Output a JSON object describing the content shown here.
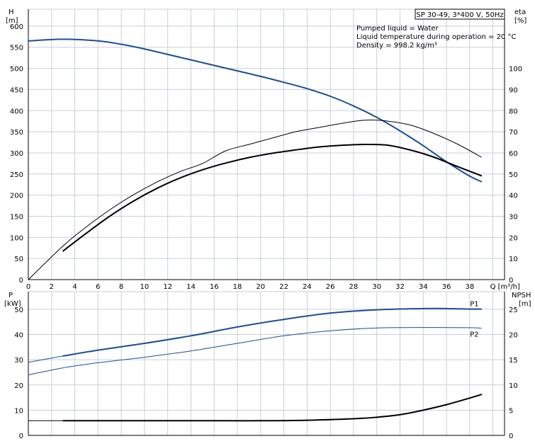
{
  "colors": {
    "head_curve": "#1f4e8c",
    "p1_curve": "#1f4e8c",
    "p2_curve": "#1f4e8c",
    "black": "#000000",
    "grid": "#c8cfdc"
  },
  "info": {
    "title_box": "SP 30-49, 3*400 V, 50Hz",
    "lines": [
      "Pumped liquid = Water",
      "Liquid temperature during operation = 20 °C",
      "Density = 998.2 kg/m³"
    ]
  },
  "chart_data": [
    {
      "type": "line",
      "name_key": "upper",
      "xlabel": "Q [m³/h]",
      "ylabel_left": [
        "H",
        "[m]"
      ],
      "ylabel_right": [
        "eta",
        "[%]"
      ],
      "xlim": [
        0,
        41
      ],
      "ylim_left": [
        0,
        640
      ],
      "ylim_right": [
        0,
        128
      ],
      "xticks": [
        0,
        2,
        4,
        6,
        8,
        10,
        12,
        14,
        16,
        18,
        20,
        22,
        24,
        26,
        28,
        30,
        32,
        34,
        36,
        38
      ],
      "yticks_left": [
        0,
        50,
        100,
        150,
        200,
        250,
        300,
        350,
        400,
        450,
        500,
        550,
        600
      ],
      "yticks_right": [
        0,
        10,
        20,
        30,
        40,
        50,
        60,
        70,
        80,
        90,
        100
      ],
      "grid": true,
      "series": [
        {
          "axis": "left",
          "color_key": "head_curve",
          "width": 2,
          "x": [
            0,
            3,
            6,
            8,
            10,
            12,
            14,
            16,
            18,
            20,
            22,
            24,
            26,
            28,
            30,
            32,
            34,
            36,
            38,
            39
          ],
          "y": [
            565,
            569,
            565,
            557,
            546,
            533,
            520,
            507,
            494,
            481,
            467,
            452,
            434,
            411,
            384,
            352,
            317,
            279,
            245,
            232
          ]
        },
        {
          "axis": "right",
          "color_key": "black",
          "width": 1,
          "x": [
            0,
            3,
            5,
            7,
            9,
            11,
            13,
            15,
            17,
            19,
            21,
            23,
            25,
            27,
            29,
            31,
            33,
            35,
            37,
            39
          ],
          "y": [
            0,
            16,
            25,
            33,
            40,
            46,
            51,
            55,
            61,
            64,
            67,
            70,
            72,
            74,
            75.5,
            75,
            73,
            69,
            64,
            58
          ]
        },
        {
          "axis": "left",
          "color_key": "black",
          "width": 2,
          "x": [
            3,
            5,
            7,
            9,
            11,
            13,
            15,
            17,
            19,
            21,
            23,
            25,
            27,
            29,
            31,
            33,
            35,
            37,
            39
          ],
          "y": [
            68,
            110,
            150,
            185,
            215,
            240,
            260,
            276,
            289,
            299,
            307,
            314,
            318,
            320,
            318,
            306,
            289,
            267,
            246
          ]
        }
      ]
    },
    {
      "type": "line",
      "name_key": "lower",
      "ylabel_left": [
        "P",
        "[kW]"
      ],
      "ylabel_right": [
        "NPSH",
        "[m]"
      ],
      "xlim": [
        0,
        41
      ],
      "ylim_left": [
        0,
        57
      ],
      "ylim_right": [
        0,
        28.5
      ],
      "yticks_left": [
        0,
        10,
        20,
        30,
        40,
        50
      ],
      "yticks_right": [
        0,
        5,
        10,
        15,
        20,
        25
      ],
      "grid": true,
      "series": [
        {
          "name": "P1",
          "axis": "left",
          "color_key": "p1_curve",
          "width": 2,
          "x": [
            3,
            6,
            10,
            14,
            18,
            22,
            26,
            30,
            34,
            36,
            38,
            39
          ],
          "y": [
            31.5,
            33.8,
            36.5,
            39.5,
            43,
            46,
            48.5,
            49.8,
            50.3,
            50.3,
            50.1,
            50.1
          ]
        },
        {
          "name": "P2",
          "axis": "left",
          "color_key": "p2_curve",
          "width": 1,
          "x": [
            0,
            3,
            6,
            10,
            14,
            18,
            22,
            26,
            30,
            34,
            38,
            39
          ],
          "y": [
            24,
            26.8,
            28.8,
            31,
            33.5,
            36.5,
            39.5,
            41.5,
            42.6,
            42.8,
            42.7,
            42.5
          ]
        },
        {
          "axis": "left",
          "color_key": "p1_curve",
          "width": 1,
          "x": [
            0,
            3
          ],
          "y": [
            29,
            31.5
          ]
        },
        {
          "axis": "right",
          "color_key": "black",
          "width": 2,
          "x": [
            3,
            10,
            16,
            20,
            24,
            28,
            30,
            32,
            34,
            36,
            38,
            39
          ],
          "y": [
            2.9,
            2.9,
            2.9,
            2.9,
            3.0,
            3.3,
            3.6,
            4.1,
            5.0,
            6.1,
            7.4,
            8.1
          ]
        },
        {
          "axis": "right",
          "color_key": "black",
          "width": 1,
          "x": [
            0,
            3
          ],
          "y": [
            2.9,
            2.9
          ]
        }
      ]
    }
  ]
}
